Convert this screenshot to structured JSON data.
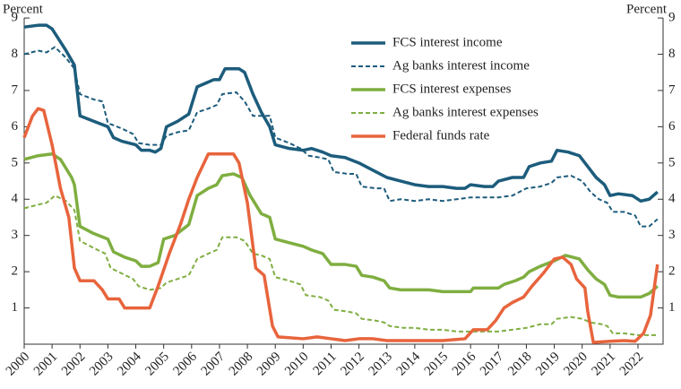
{
  "chart_data": {
    "type": "line",
    "y_label": "Percent",
    "y2_label": "Percent",
    "xlim": [
      2000,
      2022.9
    ],
    "xticks": [
      2000,
      2001,
      2002,
      2003,
      2004,
      2005,
      2006,
      2007,
      2008,
      2009,
      2010,
      2011,
      2012,
      2013,
      2014,
      2015,
      2016,
      2017,
      2018,
      2019,
      2020,
      2021,
      2022
    ],
    "ylim": [
      0,
      9.2
    ],
    "yticks": [
      1,
      2,
      3,
      4,
      5,
      6,
      7,
      8,
      9
    ],
    "y2lim": [
      0,
      9.2
    ],
    "y2ticks": [
      1,
      2,
      3,
      4,
      5,
      6,
      7,
      8,
      9
    ],
    "legend": "top",
    "series": [
      {
        "name": "FCS interest income",
        "color": "#1c5c7c",
        "dash": false,
        "x": [
          2000,
          2000.5,
          2000.8,
          2001,
          2001.5,
          2001.8,
          2002,
          2002.5,
          2003,
          2003.2,
          2003.5,
          2004,
          2004.2,
          2004.5,
          2004.7,
          2004.9,
          2005.1,
          2005.5,
          2005.9,
          2006.2,
          2006.5,
          2006.8,
          2007,
          2007.2,
          2007.7,
          2007.9,
          2008.2,
          2008.5,
          2008.8,
          2009,
          2009.5,
          2010,
          2010.3,
          2010.7,
          2011,
          2011.5,
          2012,
          2012.5,
          2013,
          2013.5,
          2014,
          2014.5,
          2015,
          2015.5,
          2015.8,
          2016,
          2016.5,
          2016.8,
          2017,
          2017.5,
          2017.9,
          2018.1,
          2018.5,
          2018.9,
          2019.1,
          2019.5,
          2019.9,
          2020.2,
          2020.5,
          2020.8,
          2021,
          2021.3,
          2021.8,
          2022.1,
          2022.4,
          2022.7
        ],
        "values": [
          8.75,
          8.8,
          8.8,
          8.7,
          8.1,
          7.7,
          6.3,
          6.15,
          6.0,
          5.7,
          5.6,
          5.5,
          5.35,
          5.35,
          5.3,
          5.4,
          6.0,
          6.15,
          6.35,
          7.1,
          7.2,
          7.3,
          7.3,
          7.6,
          7.6,
          7.5,
          6.9,
          6.4,
          6.0,
          5.5,
          5.4,
          5.35,
          5.4,
          5.3,
          5.2,
          5.15,
          5.0,
          4.8,
          4.6,
          4.5,
          4.4,
          4.35,
          4.35,
          4.3,
          4.3,
          4.4,
          4.35,
          4.35,
          4.5,
          4.6,
          4.6,
          4.9,
          5.0,
          5.05,
          5.35,
          5.3,
          5.2,
          4.9,
          4.6,
          4.4,
          4.1,
          4.15,
          4.1,
          3.95,
          4.0,
          4.2
        ]
      },
      {
        "name": "Ag banks interest income",
        "color": "#1c5c7c",
        "dash": true,
        "x": [
          2000,
          2000.5,
          2000.8,
          2001.1,
          2001.5,
          2001.8,
          2002,
          2002.5,
          2002.8,
          2003,
          2003.5,
          2003.9,
          2004.1,
          2004.5,
          2004.9,
          2005.1,
          2005.5,
          2005.9,
          2006.2,
          2006.6,
          2006.9,
          2007.1,
          2007.6,
          2007.9,
          2008.2,
          2008.5,
          2008.8,
          2009,
          2009.5,
          2009.9,
          2010.2,
          2010.6,
          2010.9,
          2011.1,
          2011.6,
          2011.9,
          2012.1,
          2012.6,
          2012.9,
          2013.1,
          2013.5,
          2014,
          2014.5,
          2015,
          2015.5,
          2016,
          2016.5,
          2017,
          2017.5,
          2018,
          2018.5,
          2018.9,
          2019.1,
          2019.6,
          2020,
          2020.3,
          2020.6,
          2020.9,
          2021.1,
          2021.5,
          2021.9,
          2022.1,
          2022.4,
          2022.7
        ],
        "values": [
          8.0,
          8.1,
          8.05,
          8.2,
          7.9,
          7.6,
          6.9,
          6.75,
          6.7,
          6.1,
          5.95,
          5.8,
          5.55,
          5.5,
          5.5,
          5.75,
          5.85,
          5.9,
          6.4,
          6.5,
          6.6,
          6.9,
          6.95,
          6.7,
          6.3,
          6.3,
          6.3,
          5.7,
          5.55,
          5.4,
          5.2,
          5.15,
          5.1,
          4.75,
          4.7,
          4.7,
          4.35,
          4.3,
          4.3,
          3.95,
          4.0,
          3.95,
          4.0,
          3.95,
          4.0,
          4.05,
          4.05,
          4.05,
          4.1,
          4.3,
          4.35,
          4.45,
          4.6,
          4.65,
          4.5,
          4.2,
          4.0,
          3.9,
          3.65,
          3.65,
          3.55,
          3.25,
          3.25,
          3.45
        ]
      },
      {
        "name": "FCS interest expenses",
        "color": "#7fae40",
        "dash": false,
        "x": [
          2000,
          2000.5,
          2001,
          2001.3,
          2001.7,
          2001.8,
          2002,
          2002.5,
          2003,
          2003.2,
          2003.6,
          2004,
          2004.2,
          2004.5,
          2004.8,
          2005,
          2005.4,
          2005.9,
          2006.2,
          2006.6,
          2006.9,
          2007.1,
          2007.5,
          2007.8,
          2008.1,
          2008.5,
          2008.8,
          2009,
          2009.5,
          2010,
          2010.3,
          2010.7,
          2011,
          2011.5,
          2011.9,
          2012.1,
          2012.5,
          2012.9,
          2013.1,
          2013.5,
          2014,
          2014.5,
          2015,
          2015.5,
          2016,
          2016.1,
          2016.5,
          2017,
          2017.2,
          2017.6,
          2017.9,
          2018.1,
          2018.5,
          2019,
          2019.4,
          2019.9,
          2020.2,
          2020.5,
          2020.8,
          2021,
          2021.3,
          2021.8,
          2022.1,
          2022.4,
          2022.7
        ],
        "values": [
          5.1,
          5.2,
          5.25,
          5.1,
          4.6,
          4.4,
          3.25,
          3.05,
          2.9,
          2.55,
          2.4,
          2.3,
          2.15,
          2.15,
          2.25,
          2.9,
          3.0,
          3.3,
          4.1,
          4.3,
          4.4,
          4.65,
          4.7,
          4.6,
          4.1,
          3.6,
          3.5,
          2.9,
          2.8,
          2.7,
          2.6,
          2.5,
          2.2,
          2.2,
          2.15,
          1.9,
          1.85,
          1.75,
          1.55,
          1.5,
          1.5,
          1.5,
          1.45,
          1.45,
          1.45,
          1.55,
          1.55,
          1.55,
          1.65,
          1.75,
          1.85,
          2.0,
          2.15,
          2.3,
          2.45,
          2.35,
          2.05,
          1.8,
          1.65,
          1.35,
          1.3,
          1.3,
          1.3,
          1.4,
          1.6
        ]
      },
      {
        "name": "Ag banks interest expenses",
        "color": "#7fae40",
        "dash": true,
        "x": [
          2000,
          2000.5,
          2000.8,
          2001.1,
          2001.5,
          2001.8,
          2002,
          2002.5,
          2002.9,
          2003.1,
          2003.5,
          2003.9,
          2004.1,
          2004.5,
          2004.9,
          2005.1,
          2005.5,
          2005.9,
          2006.2,
          2006.6,
          2006.9,
          2007.1,
          2007.6,
          2007.9,
          2008.2,
          2008.5,
          2008.8,
          2009,
          2009.5,
          2009.9,
          2010.1,
          2010.6,
          2010.9,
          2011.1,
          2011.6,
          2011.9,
          2012.1,
          2012.6,
          2012.9,
          2013.1,
          2013.6,
          2014,
          2014.5,
          2015,
          2015.5,
          2016,
          2016.5,
          2017,
          2017.5,
          2018,
          2018.5,
          2018.9,
          2019.1,
          2019.6,
          2020,
          2020.3,
          2020.7,
          2020.9,
          2021.1,
          2021.5,
          2022,
          2022.3,
          2022.7
        ],
        "values": [
          3.75,
          3.85,
          3.9,
          4.1,
          3.95,
          3.7,
          2.85,
          2.65,
          2.5,
          2.1,
          1.95,
          1.8,
          1.6,
          1.5,
          1.55,
          1.7,
          1.8,
          1.9,
          2.35,
          2.5,
          2.6,
          2.95,
          2.95,
          2.85,
          2.5,
          2.45,
          2.35,
          1.85,
          1.75,
          1.65,
          1.35,
          1.3,
          1.2,
          0.95,
          0.9,
          0.85,
          0.7,
          0.65,
          0.6,
          0.5,
          0.45,
          0.45,
          0.4,
          0.4,
          0.35,
          0.35,
          0.35,
          0.35,
          0.4,
          0.45,
          0.55,
          0.55,
          0.7,
          0.75,
          0.7,
          0.6,
          0.55,
          0.5,
          0.3,
          0.3,
          0.25,
          0.25,
          0.25
        ]
      },
      {
        "name": "Federal funds rate",
        "color": "#e8643c",
        "dash": false,
        "x": [
          2000,
          2000.3,
          2000.5,
          2000.7,
          2001,
          2001.3,
          2001.6,
          2001.8,
          2002,
          2002.5,
          2002.8,
          2003,
          2003.4,
          2003.6,
          2004,
          2004.5,
          2004.8,
          2005.2,
          2005.6,
          2005.9,
          2006.2,
          2006.6,
          2007,
          2007.5,
          2007.7,
          2008,
          2008.3,
          2008.6,
          2008.9,
          2009.1,
          2010,
          2010.5,
          2011,
          2011.5,
          2012,
          2012.5,
          2013,
          2013.5,
          2014,
          2015,
          2015.8,
          2016.1,
          2016.6,
          2016.9,
          2017.2,
          2017.5,
          2017.9,
          2018.2,
          2018.6,
          2019,
          2019.3,
          2019.6,
          2019.8,
          2020.1,
          2020.2,
          2020.4,
          2021,
          2021.5,
          2021.9,
          2022.2,
          2022.45,
          2022.7
        ],
        "values": [
          5.7,
          6.3,
          6.5,
          6.45,
          5.5,
          4.3,
          3.5,
          2.1,
          1.75,
          1.75,
          1.5,
          1.25,
          1.25,
          1.0,
          1.0,
          1.0,
          1.6,
          2.5,
          3.3,
          4.0,
          4.6,
          5.25,
          5.25,
          5.25,
          5.0,
          3.9,
          2.1,
          1.9,
          0.5,
          0.2,
          0.15,
          0.2,
          0.15,
          0.1,
          0.15,
          0.15,
          0.1,
          0.1,
          0.1,
          0.1,
          0.15,
          0.4,
          0.4,
          0.65,
          1.0,
          1.15,
          1.3,
          1.6,
          1.95,
          2.35,
          2.4,
          2.2,
          1.8,
          1.55,
          0.9,
          0.05,
          0.08,
          0.1,
          0.08,
          0.3,
          0.8,
          2.2
        ]
      }
    ]
  }
}
